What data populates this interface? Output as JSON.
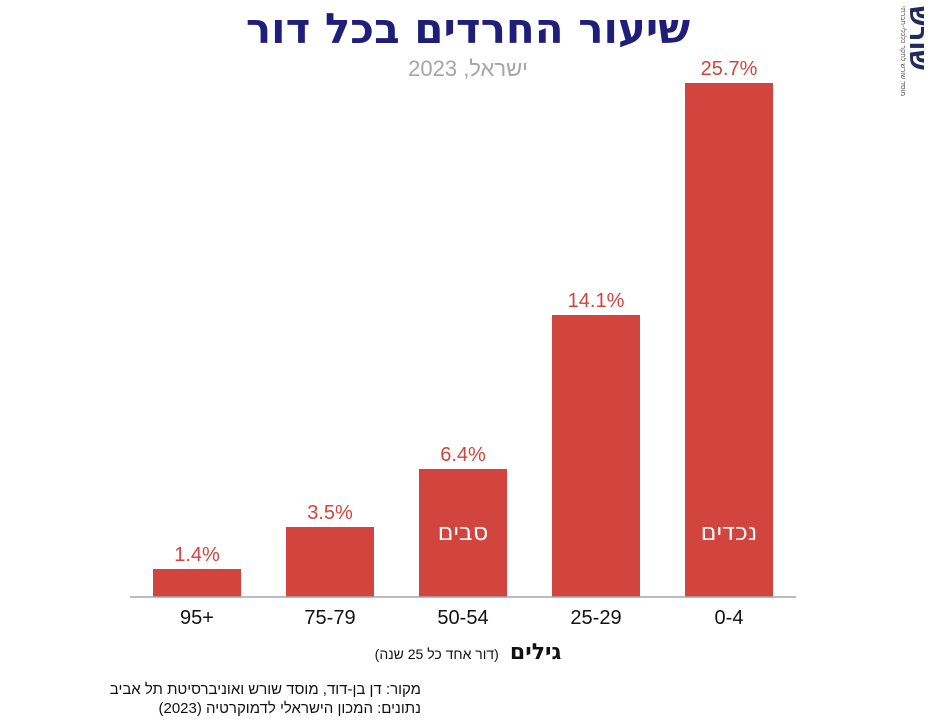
{
  "title": "שיעור החרדים בכל דור",
  "subtitle": "ישראל, 2023",
  "logo": {
    "main": "שורש",
    "sub": "מוסד שורש לחקר כלכלי-חברתי"
  },
  "colors": {
    "bar": "#d2443e",
    "label": "#d2443e",
    "title": "#1f1f7a",
    "subtitle": "#a6a6a6",
    "axis": "#a6a6a6"
  },
  "chart_data": {
    "type": "bar",
    "categories": [
      "95+",
      "75-79",
      "50-54",
      "25-29",
      "0-4"
    ],
    "values": [
      1.4,
      3.5,
      6.4,
      14.1,
      25.7
    ],
    "value_labels": [
      "1.4%",
      "3.5%",
      "6.4%",
      "14.1%",
      "25.7%"
    ],
    "bar_annotations": [
      "",
      "",
      "סבים",
      "",
      "נכדים"
    ],
    "xlabel": "גילים",
    "xlabel_note": "(דור אחד כל 25 שנה)",
    "ylim": [
      0,
      26.5
    ],
    "grid": false,
    "legend": "none"
  },
  "source": {
    "line1": "מקור:  דן בן-דוד, מוסד שורש ואוניברסיטת תל אביב",
    "line2": "נתונים: המכון הישראלי לדמוקרטיה (2023)"
  }
}
